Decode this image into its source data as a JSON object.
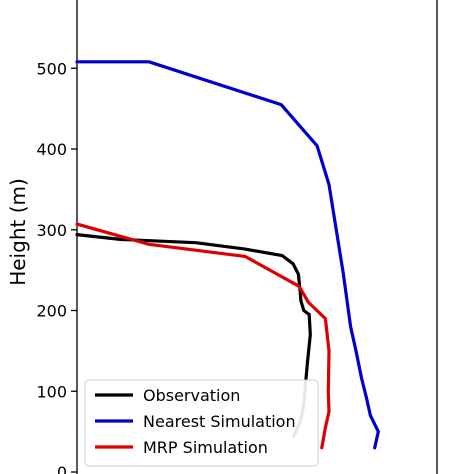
{
  "chart_data": {
    "type": "line",
    "xlabel": "",
    "ylabel": "Height (m)",
    "ylim": [
      0,
      590
    ],
    "yticks": [
      0,
      100,
      200,
      300,
      400,
      500
    ],
    "ytick_labels": [
      "0",
      "100",
      "200",
      "300",
      "400",
      "500"
    ],
    "xlim": [
      0,
      1
    ],
    "grid": false,
    "legend_position": "bottom-left",
    "series": [
      {
        "name": "Observation",
        "color": "#000000",
        "points": [
          [
            0.0,
            294
          ],
          [
            0.12,
            288
          ],
          [
            0.33,
            284
          ],
          [
            0.467,
            276
          ],
          [
            0.57,
            268
          ],
          [
            0.6,
            258
          ],
          [
            0.615,
            245
          ],
          [
            0.62,
            223
          ],
          [
            0.622,
            212
          ],
          [
            0.63,
            200
          ],
          [
            0.645,
            195
          ],
          [
            0.648,
            170
          ],
          [
            0.64,
            135
          ],
          [
            0.635,
            110
          ],
          [
            0.63,
            83
          ],
          [
            0.62,
            62
          ],
          [
            0.602,
            44
          ]
        ]
      },
      {
        "name": "Nearest Simulation",
        "color": "#0000cc",
        "points": [
          [
            0.0,
            508
          ],
          [
            0.2,
            508
          ],
          [
            0.567,
            455
          ],
          [
            0.667,
            404
          ],
          [
            0.7,
            356
          ],
          [
            0.74,
            245
          ],
          [
            0.76,
            180
          ],
          [
            0.775,
            150
          ],
          [
            0.79,
            117
          ],
          [
            0.805,
            90
          ],
          [
            0.815,
            70
          ],
          [
            0.837,
            50
          ],
          [
            0.827,
            30
          ]
        ]
      },
      {
        "name": "MRP Simulation",
        "color": "#dd0000",
        "points": [
          [
            0.0,
            307
          ],
          [
            0.2,
            282
          ],
          [
            0.467,
            267
          ],
          [
            0.617,
            230
          ],
          [
            0.643,
            210
          ],
          [
            0.69,
            190
          ],
          [
            0.7,
            150
          ],
          [
            0.698,
            100
          ],
          [
            0.7,
            75
          ],
          [
            0.69,
            55
          ],
          [
            0.68,
            30
          ]
        ]
      }
    ]
  }
}
